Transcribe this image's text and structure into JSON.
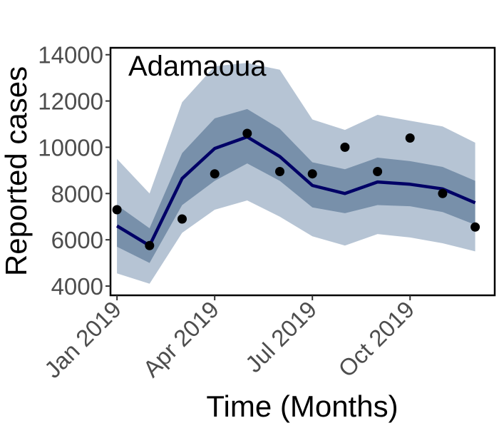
{
  "chart_data": {
    "type": "line",
    "title": "Adamaoua",
    "xlabel": "Time (Months)",
    "ylabel": "Reported cases",
    "x_ticks": [
      {
        "label": "Jan 2019",
        "month_index": 0
      },
      {
        "label": "Apr 2019",
        "month_index": 3
      },
      {
        "label": "Jul 2019",
        "month_index": 6
      },
      {
        "label": "Oct 2019",
        "month_index": 9
      }
    ],
    "y_ticks": [
      4000,
      6000,
      8000,
      10000,
      12000,
      14000
    ],
    "ylim": [
      3600,
      14300
    ],
    "xlim_months": [
      -0.2,
      11.6
    ],
    "x": [
      "2019-01",
      "2019-02",
      "2019-03",
      "2019-04",
      "2019-05",
      "2019-06",
      "2019-07",
      "2019-08",
      "2019-09",
      "2019-10",
      "2019-11",
      "2019-12"
    ],
    "observed": [
      7300,
      5750,
      6900,
      8850,
      10600,
      8950,
      8850,
      10000,
      8950,
      10400,
      8000,
      6550
    ],
    "fitted": [
      6600,
      5750,
      8650,
      9950,
      10450,
      9600,
      8350,
      8000,
      8500,
      8400,
      8200,
      7600
    ],
    "band_50": {
      "lower": [
        5700,
        5000,
        7500,
        8550,
        9300,
        8550,
        7400,
        7150,
        7500,
        7450,
        7200,
        6650
      ],
      "upper": [
        7500,
        6500,
        9750,
        11250,
        11650,
        10800,
        9350,
        9050,
        9550,
        9400,
        9150,
        8550
      ]
    },
    "band_95": {
      "lower": [
        4550,
        4100,
        6300,
        7300,
        7700,
        7000,
        6150,
        5750,
        6250,
        6100,
        5850,
        5500
      ],
      "upper": [
        9500,
        8000,
        11950,
        13500,
        13650,
        13350,
        11200,
        10750,
        11400,
        11150,
        10900,
        10200
      ]
    },
    "grid": false,
    "legend": "none",
    "colors": {
      "band_95": "#b6c4d4",
      "band_50": "#7890aa",
      "fitted_line": "#000066",
      "points": "#000000",
      "frame": "#000000"
    }
  }
}
